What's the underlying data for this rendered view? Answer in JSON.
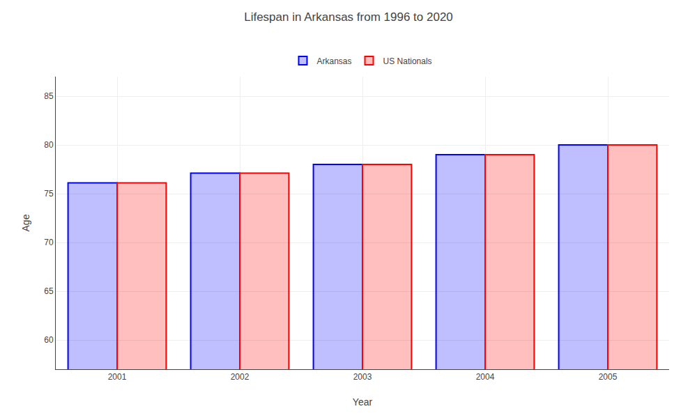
{
  "chart_data": {
    "type": "bar",
    "title": "Lifespan in Arkansas from 1996 to 2020",
    "categories": [
      "2001",
      "2002",
      "2003",
      "2004",
      "2005"
    ],
    "series": [
      {
        "name": "Arkansas",
        "color": "#0000ff",
        "values": [
          76.1,
          77.1,
          78.0,
          79.0,
          80.0
        ]
      },
      {
        "name": "US Nationals",
        "color": "#ff0000",
        "values": [
          76.1,
          77.1,
          78.0,
          79.0,
          80.0
        ]
      }
    ],
    "xlabel": "Year",
    "ylabel": "Age",
    "ylim": [
      57,
      87
    ],
    "yticks": [
      60,
      65,
      70,
      75,
      80,
      85
    ],
    "grid": true,
    "legend": "top"
  }
}
